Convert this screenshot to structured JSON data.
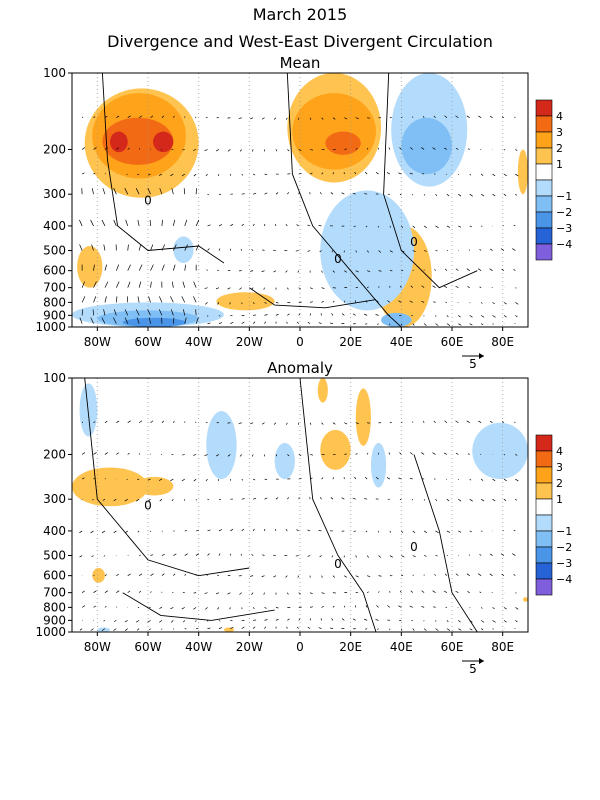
{
  "title_line1": "March 2015",
  "title_line2": "Divergence and West-East Divergent Circulation",
  "colors": {
    "pos1": "#ffc34f",
    "pos2": "#ffa31b",
    "pos3": "#f26b14",
    "pos4": "#d4291a",
    "neg1": "#b3dbfb",
    "neg2": "#80bff5",
    "neg3": "#4a95e8",
    "neg4": "#2563d6",
    "neg5": "#7f5fdb"
  },
  "chart_data": [
    {
      "type": "contour",
      "title": "Mean",
      "xlabel": "",
      "ylabel": "",
      "x_ticks": [
        "80W",
        "60W",
        "40W",
        "20W",
        "0",
        "20E",
        "40E",
        "60E",
        "80E"
      ],
      "x_values": [
        -80,
        -60,
        -40,
        -20,
        0,
        20,
        40,
        60,
        80
      ],
      "xlim": [
        -90,
        90
      ],
      "y_ticks": [
        "100",
        "200",
        "300",
        "400",
        "500",
        "600",
        "700",
        "800",
        "900",
        "1000"
      ],
      "y_values": [
        100,
        200,
        300,
        400,
        500,
        600,
        700,
        800,
        900,
        1000
      ],
      "ylim": [
        1000,
        100
      ],
      "colorbar_labels": [
        "4",
        "3",
        "2",
        "1",
        "−1",
        "−2",
        "−3",
        "−4"
      ],
      "contour_label": "0",
      "vector_reference": "5",
      "regions": [
        {
          "sign": "pos",
          "level": 1,
          "lon": [
            -85,
            -40
          ],
          "p": [
            115,
            310
          ]
        },
        {
          "sign": "pos",
          "level": 2,
          "lon": [
            -82,
            -45
          ],
          "p": [
            120,
            260
          ]
        },
        {
          "sign": "pos",
          "level": 3,
          "lon": [
            -78,
            -50
          ],
          "p": [
            150,
            230
          ]
        },
        {
          "sign": "pos",
          "level": 4,
          "lon": [
            -75,
            -68
          ],
          "p": [
            170,
            205
          ]
        },
        {
          "sign": "pos",
          "level": 4,
          "lon": [
            -58,
            -50
          ],
          "p": [
            170,
            205
          ]
        },
        {
          "sign": "pos",
          "level": 1,
          "lon": [
            -5,
            32
          ],
          "p": [
            100,
            270
          ]
        },
        {
          "sign": "pos",
          "level": 2,
          "lon": [
            -3,
            30
          ],
          "p": [
            120,
            240
          ]
        },
        {
          "sign": "pos",
          "level": 3,
          "lon": [
            10,
            24
          ],
          "p": [
            170,
            210
          ]
        },
        {
          "sign": "pos",
          "level": 1,
          "lon": [
            -88,
            -78
          ],
          "p": [
            480,
            700
          ]
        },
        {
          "sign": "pos",
          "level": 1,
          "lon": [
            -33,
            -10
          ],
          "p": [
            730,
            860
          ]
        },
        {
          "sign": "pos",
          "level": 1,
          "lon": [
            30,
            52
          ],
          "p": [
            400,
            1000
          ]
        },
        {
          "sign": "pos",
          "level": 1,
          "lon": [
            86,
            90
          ],
          "p": [
            200,
            300
          ]
        },
        {
          "sign": "neg",
          "level": 1,
          "lon": [
            36,
            66
          ],
          "p": [
            100,
            280
          ]
        },
        {
          "sign": "neg",
          "level": 2,
          "lon": [
            40,
            60
          ],
          "p": [
            150,
            250
          ]
        },
        {
          "sign": "neg",
          "level": 1,
          "lon": [
            8,
            45
          ],
          "p": [
            290,
            860
          ]
        },
        {
          "sign": "neg",
          "level": 1,
          "lon": [
            -90,
            -30
          ],
          "p": [
            800,
            1000
          ]
        },
        {
          "sign": "neg",
          "level": 2,
          "lon": [
            -80,
            -40
          ],
          "p": [
            860,
            1000
          ]
        },
        {
          "sign": "neg",
          "level": 3,
          "lon": [
            -70,
            -45
          ],
          "p": [
            920,
            1000
          ]
        },
        {
          "sign": "neg",
          "level": 1,
          "lon": [
            -50,
            -42
          ],
          "p": [
            440,
            560
          ]
        },
        {
          "sign": "neg",
          "level": 2,
          "lon": [
            32,
            44
          ],
          "p": [
            880,
            1000
          ]
        }
      ]
    },
    {
      "type": "contour",
      "title": "Anomaly",
      "xlabel": "",
      "ylabel": "",
      "x_ticks": [
        "80W",
        "60W",
        "40W",
        "20W",
        "0",
        "20E",
        "40E",
        "60E",
        "80E"
      ],
      "x_values": [
        -80,
        -60,
        -40,
        -20,
        0,
        20,
        40,
        60,
        80
      ],
      "xlim": [
        -90,
        90
      ],
      "y_ticks": [
        "100",
        "200",
        "300",
        "400",
        "500",
        "600",
        "700",
        "800",
        "900",
        "1000"
      ],
      "y_values": [
        100,
        200,
        300,
        400,
        500,
        600,
        700,
        800,
        900,
        1000
      ],
      "ylim": [
        1000,
        100
      ],
      "colorbar_labels": [
        "4",
        "3",
        "2",
        "1",
        "−1",
        "−2",
        "−3",
        "−4"
      ],
      "contour_label": "0",
      "vector_reference": "5",
      "regions": [
        {
          "sign": "pos",
          "level": 1,
          "lon": [
            -90,
            -60
          ],
          "p": [
            225,
            320
          ]
        },
        {
          "sign": "pos",
          "level": 1,
          "lon": [
            -65,
            -50
          ],
          "p": [
            245,
            290
          ]
        },
        {
          "sign": "pos",
          "level": 1,
          "lon": [
            8,
            20
          ],
          "p": [
            160,
            230
          ]
        },
        {
          "sign": "pos",
          "level": 1,
          "lon": [
            22,
            28
          ],
          "p": [
            110,
            185
          ]
        },
        {
          "sign": "pos",
          "level": 1,
          "lon": [
            7,
            11
          ],
          "p": [
            100,
            125
          ]
        },
        {
          "sign": "pos",
          "level": 1,
          "lon": [
            -82,
            -77
          ],
          "p": [
            560,
            640
          ]
        },
        {
          "sign": "pos",
          "level": 1,
          "lon": [
            -30,
            -26
          ],
          "p": [
            960,
            1000
          ]
        },
        {
          "sign": "pos",
          "level": 1,
          "lon": [
            88,
            90
          ],
          "p": [
            730,
            760
          ]
        },
        {
          "sign": "neg",
          "level": 1,
          "lon": [
            -87,
            -80
          ],
          "p": [
            105,
            170
          ]
        },
        {
          "sign": "neg",
          "level": 1,
          "lon": [
            -37,
            -25
          ],
          "p": [
            135,
            250
          ]
        },
        {
          "sign": "neg",
          "level": 1,
          "lon": [
            -10,
            -2
          ],
          "p": [
            180,
            250
          ]
        },
        {
          "sign": "neg",
          "level": 1,
          "lon": [
            28,
            34
          ],
          "p": [
            180,
            270
          ]
        },
        {
          "sign": "neg",
          "level": 1,
          "lon": [
            68,
            90
          ],
          "p": [
            150,
            250
          ]
        },
        {
          "sign": "neg",
          "level": 1,
          "lon": [
            -80,
            -75
          ],
          "p": [
            960,
            1000
          ]
        }
      ]
    }
  ]
}
